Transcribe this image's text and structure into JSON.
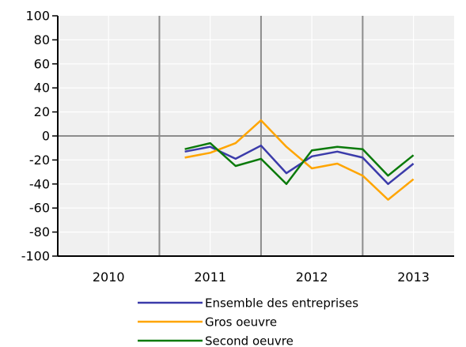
{
  "chart_data": {
    "type": "line",
    "title": "",
    "xlabel": "",
    "ylabel": "",
    "ylim": [
      -100,
      100
    ],
    "y_ticks": [
      100,
      80,
      60,
      40,
      20,
      0,
      -20,
      -40,
      -60,
      -80,
      -100
    ],
    "x_range": [
      2009.5,
      2013.4
    ],
    "x_ticks": [
      2010,
      2011,
      2012,
      2013
    ],
    "x_tick_labels": [
      "2010",
      "2011",
      "2012",
      "2013"
    ],
    "year_separators": [
      2010.5,
      2011.5,
      2012.5
    ],
    "grid": true,
    "background_color": "#f0f0f0",
    "legend_placement": "bottom",
    "x": [
      2010.75,
      2011.0,
      2011.25,
      2011.5,
      2011.75,
      2012.0,
      2012.25,
      2012.5,
      2012.75,
      2013.0
    ],
    "series": [
      {
        "name": "Ensemble des entreprises",
        "color": "#3b3baa",
        "values": [
          -13,
          -9,
          -19,
          -8,
          -31,
          -17,
          -13,
          -18,
          -40,
          -23
        ]
      },
      {
        "name": "Gros oeuvre",
        "color": "#ffa500",
        "values": [
          -18,
          -14,
          -6,
          13,
          -9,
          -27,
          -23,
          -33,
          -53,
          -36
        ]
      },
      {
        "name": "Second oeuvre",
        "color": "#0b7a0b",
        "values": [
          -11,
          -6,
          -25,
          -19,
          -40,
          -12,
          -9,
          -11,
          -33,
          -16
        ]
      }
    ]
  }
}
